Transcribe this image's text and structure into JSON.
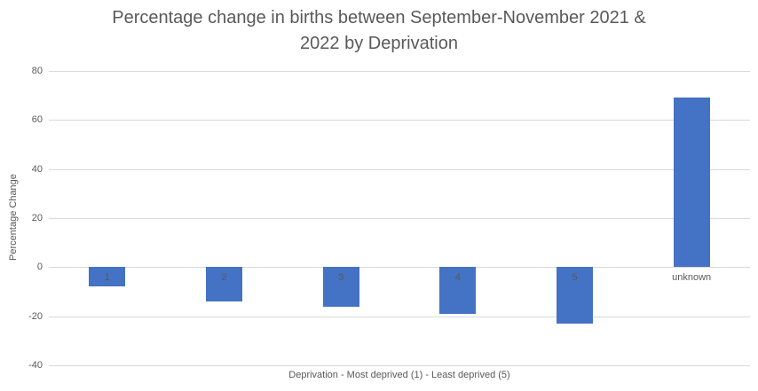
{
  "chart_data": {
    "type": "bar",
    "title": "Percentage change in births between September-November 2021 & 2022 by Deprivation",
    "title_lines": [
      "Percentage change in births between September-November 2021 &",
      "2022 by Deprivation"
    ],
    "categories": [
      "1",
      "2",
      "3",
      "4",
      "5",
      "unknown"
    ],
    "values": [
      -8,
      -14,
      -16,
      -19,
      -23,
      69
    ],
    "xlabel": "Deprivation - Most deprived (1) - Least deprived (5)",
    "ylabel": "Percentage Change",
    "ylim": [
      -40,
      80
    ],
    "yticks": [
      80,
      60,
      40,
      20,
      0,
      -20,
      -40
    ],
    "grid": true,
    "legend": false,
    "colors": {
      "bar": "#4472C4",
      "gridline": "#d9d9d9",
      "text": "#595959",
      "background": "#ffffff"
    }
  }
}
